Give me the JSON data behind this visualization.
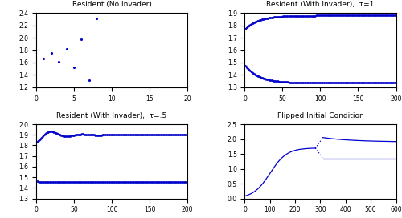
{
  "tl_title": "Resident (No Invader)",
  "tl_xlim": [
    0,
    20
  ],
  "tl_ylim": [
    1.2,
    2.4
  ],
  "tl_xticks": [
    0,
    5,
    10,
    15,
    20
  ],
  "tl_yticks": [
    1.2,
    1.4,
    1.6,
    1.8,
    2.0,
    2.2,
    2.4
  ],
  "tr_title": "Resident (With Invader),  τ=1",
  "tr_xlim": [
    0,
    200
  ],
  "tr_ylim": [
    1.3,
    1.9
  ],
  "tr_xticks": [
    0,
    50,
    100,
    150,
    200
  ],
  "tr_yticks": [
    1.3,
    1.4,
    1.5,
    1.6,
    1.7,
    1.8,
    1.9
  ],
  "bl_title": "Resident (With Invader),  τ=.5",
  "bl_xlim": [
    0,
    200
  ],
  "bl_ylim": [
    1.3,
    2.0
  ],
  "bl_xticks": [
    0,
    50,
    100,
    150,
    200
  ],
  "bl_yticks": [
    1.3,
    1.4,
    1.5,
    1.6,
    1.7,
    1.8,
    1.9,
    2.0
  ],
  "br_title": "Flipped Initial Condition",
  "br_xlim": [
    0,
    600
  ],
  "br_ylim": [
    0,
    2.5
  ],
  "br_xticks": [
    0,
    100,
    200,
    300,
    400,
    500,
    600
  ],
  "br_yticks": [
    0,
    0.5,
    1.0,
    1.5,
    2.0,
    2.5
  ],
  "dot_color": "#0000cc",
  "line_color": "#0000cc"
}
